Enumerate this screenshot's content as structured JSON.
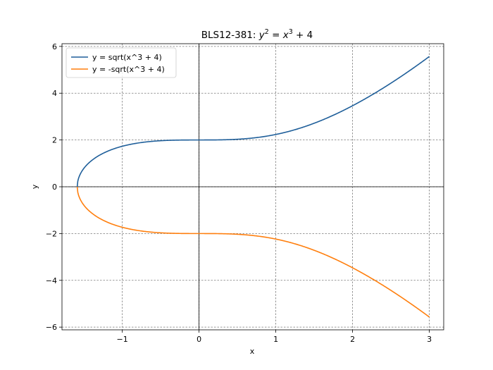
{
  "chart_data": {
    "type": "line",
    "title": "BLS12-381: y² = x³ + 4",
    "title_parts": {
      "prefix": "BLS12-381: ",
      "y": "y",
      "eq": " = ",
      "x": "x",
      "plus": " + 4",
      "two": "2",
      "three": "3"
    },
    "xlabel": "x",
    "ylabel": "y",
    "xlim": [
      -1.786,
      3.1874
    ],
    "ylim": [
      -6.1161,
      6.1161
    ],
    "xticks": [
      -1,
      0,
      1,
      2,
      3
    ],
    "xtick_labels": [
      "−1",
      "0",
      "1",
      "2",
      "3"
    ],
    "yticks": [
      -6,
      -4,
      -2,
      0,
      2,
      4,
      6
    ],
    "ytick_labels": [
      "−6",
      "−4",
      "−2",
      "0",
      "2",
      "4",
      "6"
    ],
    "grid": true,
    "axhline": 0,
    "axvline": 0,
    "legend_position": "upper left",
    "x_start": -1.5874,
    "x_end": 3,
    "series": [
      {
        "name": "y = sqrt(x^3 + 4)",
        "color": "#1f5f9a",
        "function": "sqrt(x^3 + 4)"
      },
      {
        "name": "y = -sqrt(x^3 + 4)",
        "color": "#ff7f0e",
        "function": "-sqrt(x^3 + 4)"
      }
    ]
  }
}
